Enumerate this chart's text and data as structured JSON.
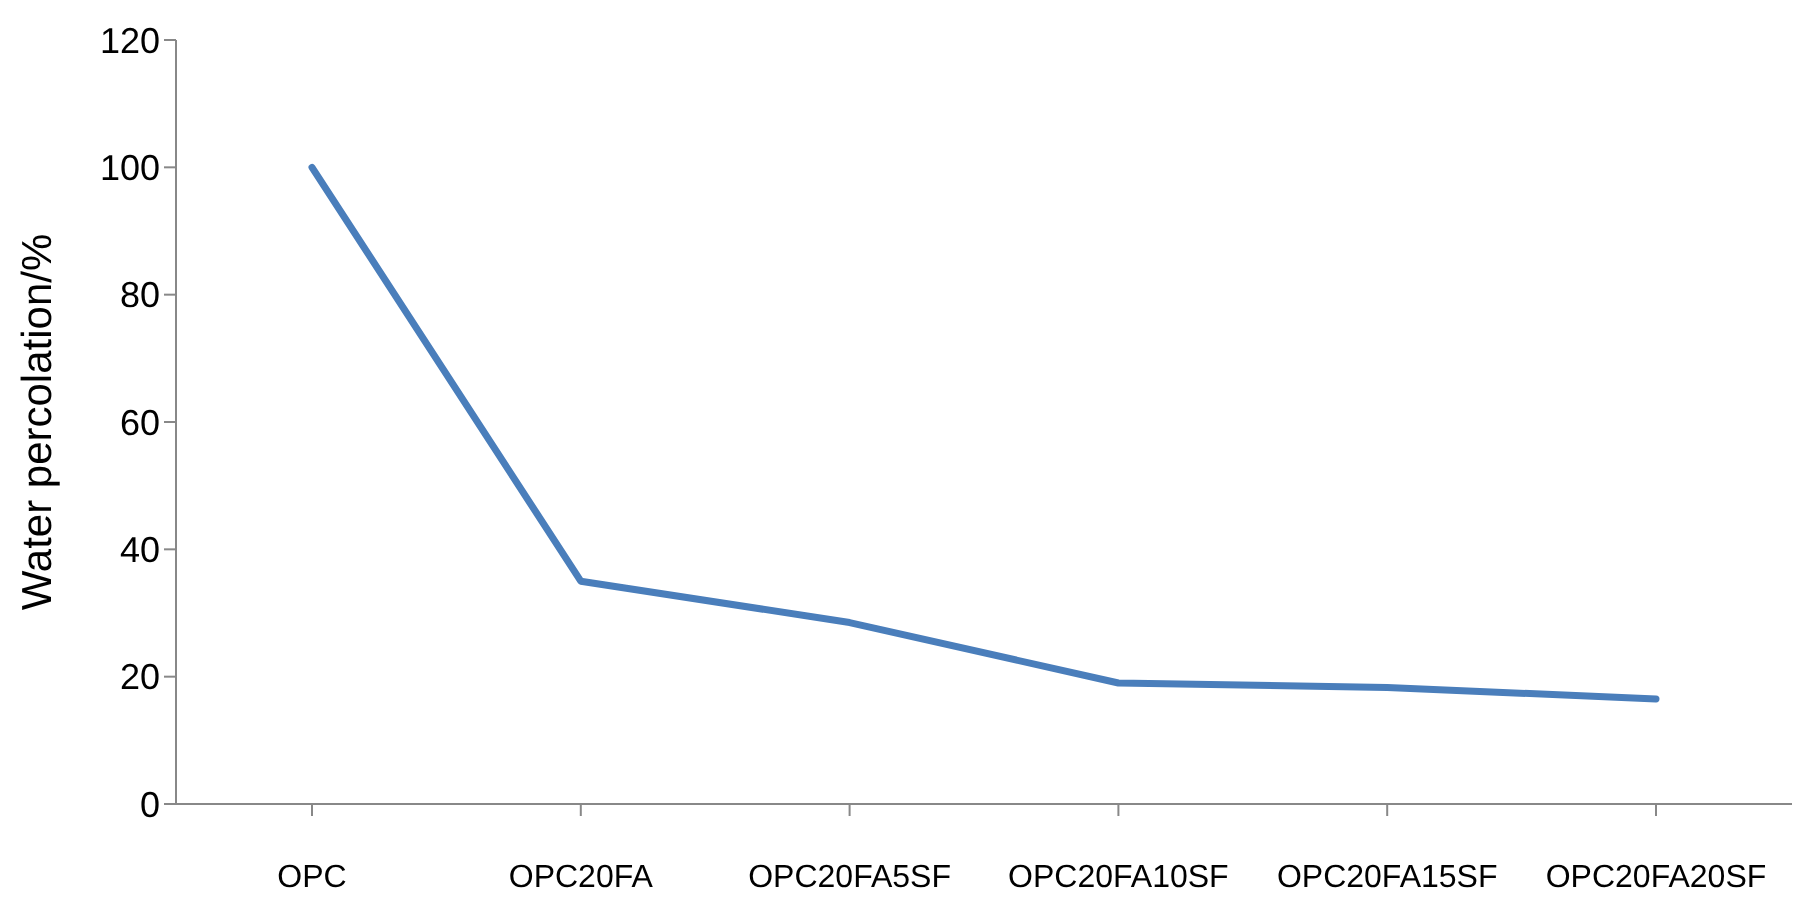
{
  "chart_data": {
    "type": "line",
    "ylabel": "Water percolation/%",
    "categories": [
      "OPC",
      "OPC20FA",
      "OPC20FA5SF",
      "OPC20FA10SF",
      "OPC20FA15SF",
      "OPC20FA20SF"
    ],
    "series": [
      {
        "color": "#4a7ebb",
        "values": [
          100,
          35,
          28.5,
          19,
          18.3,
          16.5
        ]
      }
    ],
    "ylim": [
      0,
      120
    ],
    "yticks": [
      0,
      20,
      40,
      60,
      80,
      100,
      120
    ],
    "grid": false,
    "legend": false,
    "marker": "none",
    "line_style": "solid"
  }
}
